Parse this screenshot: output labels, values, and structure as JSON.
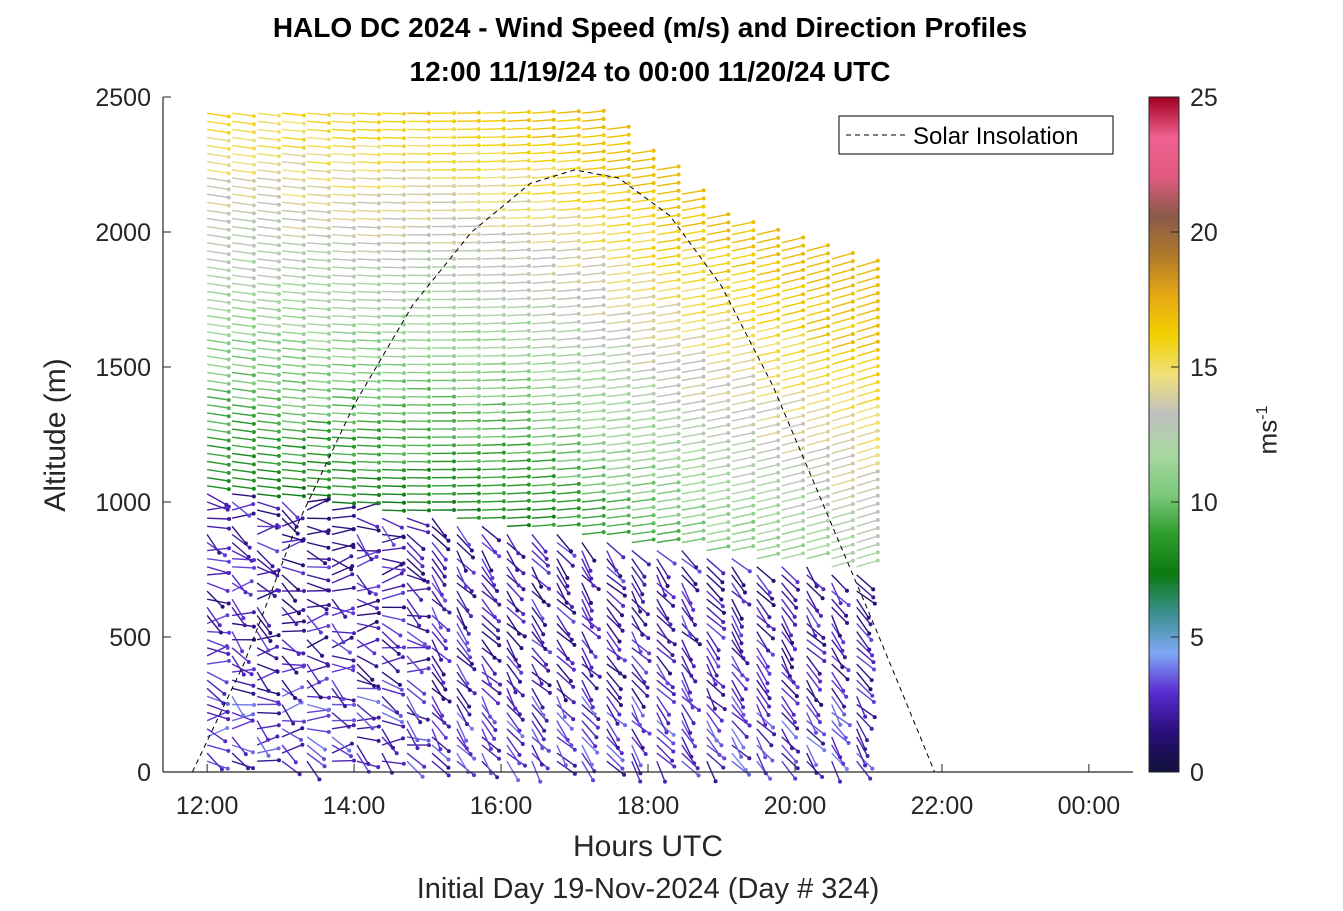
{
  "chart_data": {
    "type": "scatter",
    "title": "HALO DC 2024 - Wind Speed (m/s) and Direction Profiles",
    "subtitle": "12:00 11/19/24 to 00:00 11/20/24  UTC",
    "xlabel": "Hours UTC",
    "xlabel_sub": "Initial Day 19-Nov-2024 (Day # 324)",
    "ylabel": "Altitude (m)",
    "xlim": [
      11.4,
      24.6
    ],
    "ylim": [
      0,
      2500
    ],
    "x_ticks": [
      12,
      14,
      16,
      18,
      20,
      22,
      24
    ],
    "x_tick_labels": [
      "12:00",
      "14:00",
      "16:00",
      "18:00",
      "20:00",
      "22:00",
      "00:00"
    ],
    "y_ticks": [
      0,
      500,
      1000,
      1500,
      2000,
      2500
    ],
    "grid": false,
    "legend": {
      "entries": [
        "Solar Insolation"
      ],
      "placement": "top-right"
    },
    "colorbar": {
      "label": "ms",
      "label_exponent": "-1",
      "range": [
        0,
        25
      ],
      "ticks": [
        0,
        5,
        10,
        15,
        20,
        25
      ],
      "colors": [
        "#10103a",
        "#2a0f7a",
        "#5a2bd0",
        "#7fa8f5",
        "#3a8f8f",
        "#0a7a10",
        "#2e9e2e",
        "#7cc87c",
        "#a8d8a0",
        "#bfbfbf",
        "#f0e07a",
        "#f2d000",
        "#e6a814",
        "#b07a2a",
        "#8a5a4a",
        "#e05a80",
        "#f06090",
        "#a0001e"
      ]
    },
    "wind_profiles": {
      "time_start": 12.0,
      "time_end": 21.0,
      "time_step": 0.34,
      "altitude_start": 40,
      "altitude_end": 2460,
      "altitude_step": 30,
      "wind_speed_range_ms": [
        0,
        17
      ]
    },
    "series": [
      {
        "name": "Solar Insolation",
        "style": "dashed",
        "x": [
          11.8,
          12.5,
          13.2,
          14.0,
          14.8,
          15.6,
          16.4,
          17.0,
          17.6,
          18.3,
          19.0,
          19.7,
          20.4,
          21.1,
          21.6,
          21.9,
          24.5
        ],
        "y": [
          0,
          400,
          900,
          1360,
          1730,
          2000,
          2180,
          2230,
          2200,
          2060,
          1800,
          1430,
          980,
          530,
          200,
          0,
          0
        ]
      }
    ]
  }
}
